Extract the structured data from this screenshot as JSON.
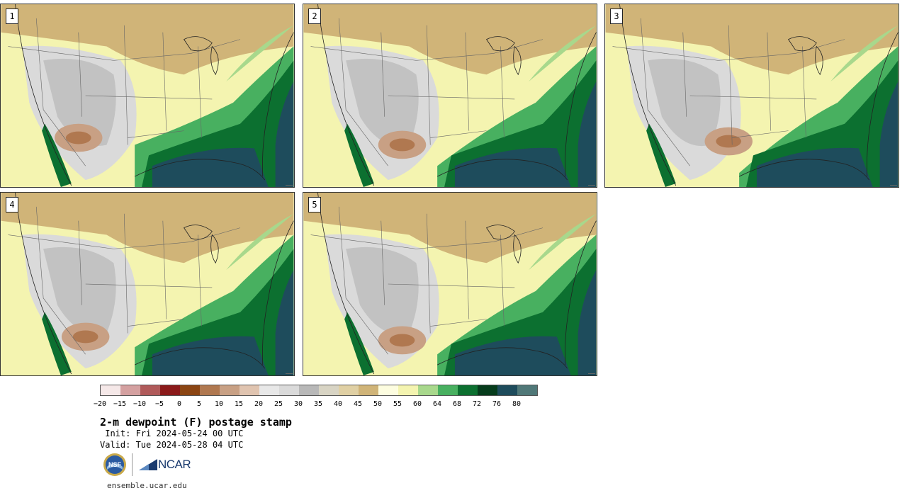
{
  "panels": [
    {
      "label": "1"
    },
    {
      "label": "2"
    },
    {
      "label": "3"
    },
    {
      "label": "4"
    },
    {
      "label": "5"
    }
  ],
  "legend": {
    "colors": [
      "#f5e8e8",
      "#d4a0a0",
      "#b05a5a",
      "#8b1a1a",
      "#8b4513",
      "#b07850",
      "#c8a084",
      "#e0c4b0",
      "#e8e8e8",
      "#dadada",
      "#b8b8b8",
      "#d8d4c4",
      "#e0d0a4",
      "#d0b478",
      "#fdfde0",
      "#f4f4b0",
      "#a8d88c",
      "#48b060",
      "#0c7030",
      "#063c1c",
      "#1e4c5c",
      "#507878"
    ],
    "ticks": [
      "−20",
      "−15",
      "−10",
      "−5",
      "0",
      "5",
      "10",
      "15",
      "20",
      "25",
      "30",
      "35",
      "40",
      "45",
      "50",
      "55",
      "60",
      "64",
      "68",
      "72",
      "76",
      "80"
    ]
  },
  "title": "2-m dewpoint (F) postage stamp",
  "init": " Init: Fri 2024-05-24 00 UTC",
  "valid": "Valid: Tue 2024-05-28 04 UTC",
  "logos": {
    "nsf": "NSF",
    "ncar": "NCAR"
  },
  "site": "ensemble.ucar.edu"
}
